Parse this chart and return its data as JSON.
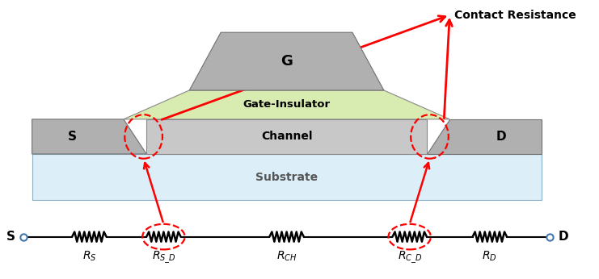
{
  "bg_color": "#ffffff",
  "substrate_color": "#dceef8",
  "gate_color": "#b0b0b0",
  "insulator_color": "#d8ebb0",
  "channel_color": "#c0c0c0",
  "sd_color": "#b0b0b0",
  "contact_label": "Contact Resistance",
  "gate_label": "G",
  "insulator_label": "Gate-Insulator",
  "channel_label": "Channel",
  "substrate_label": "Substrate",
  "s_label": "S",
  "d_label": "D",
  "fig_w": 7.41,
  "fig_h": 3.46,
  "xlim": [
    0,
    10
  ],
  "ylim": [
    0,
    4.8
  ]
}
